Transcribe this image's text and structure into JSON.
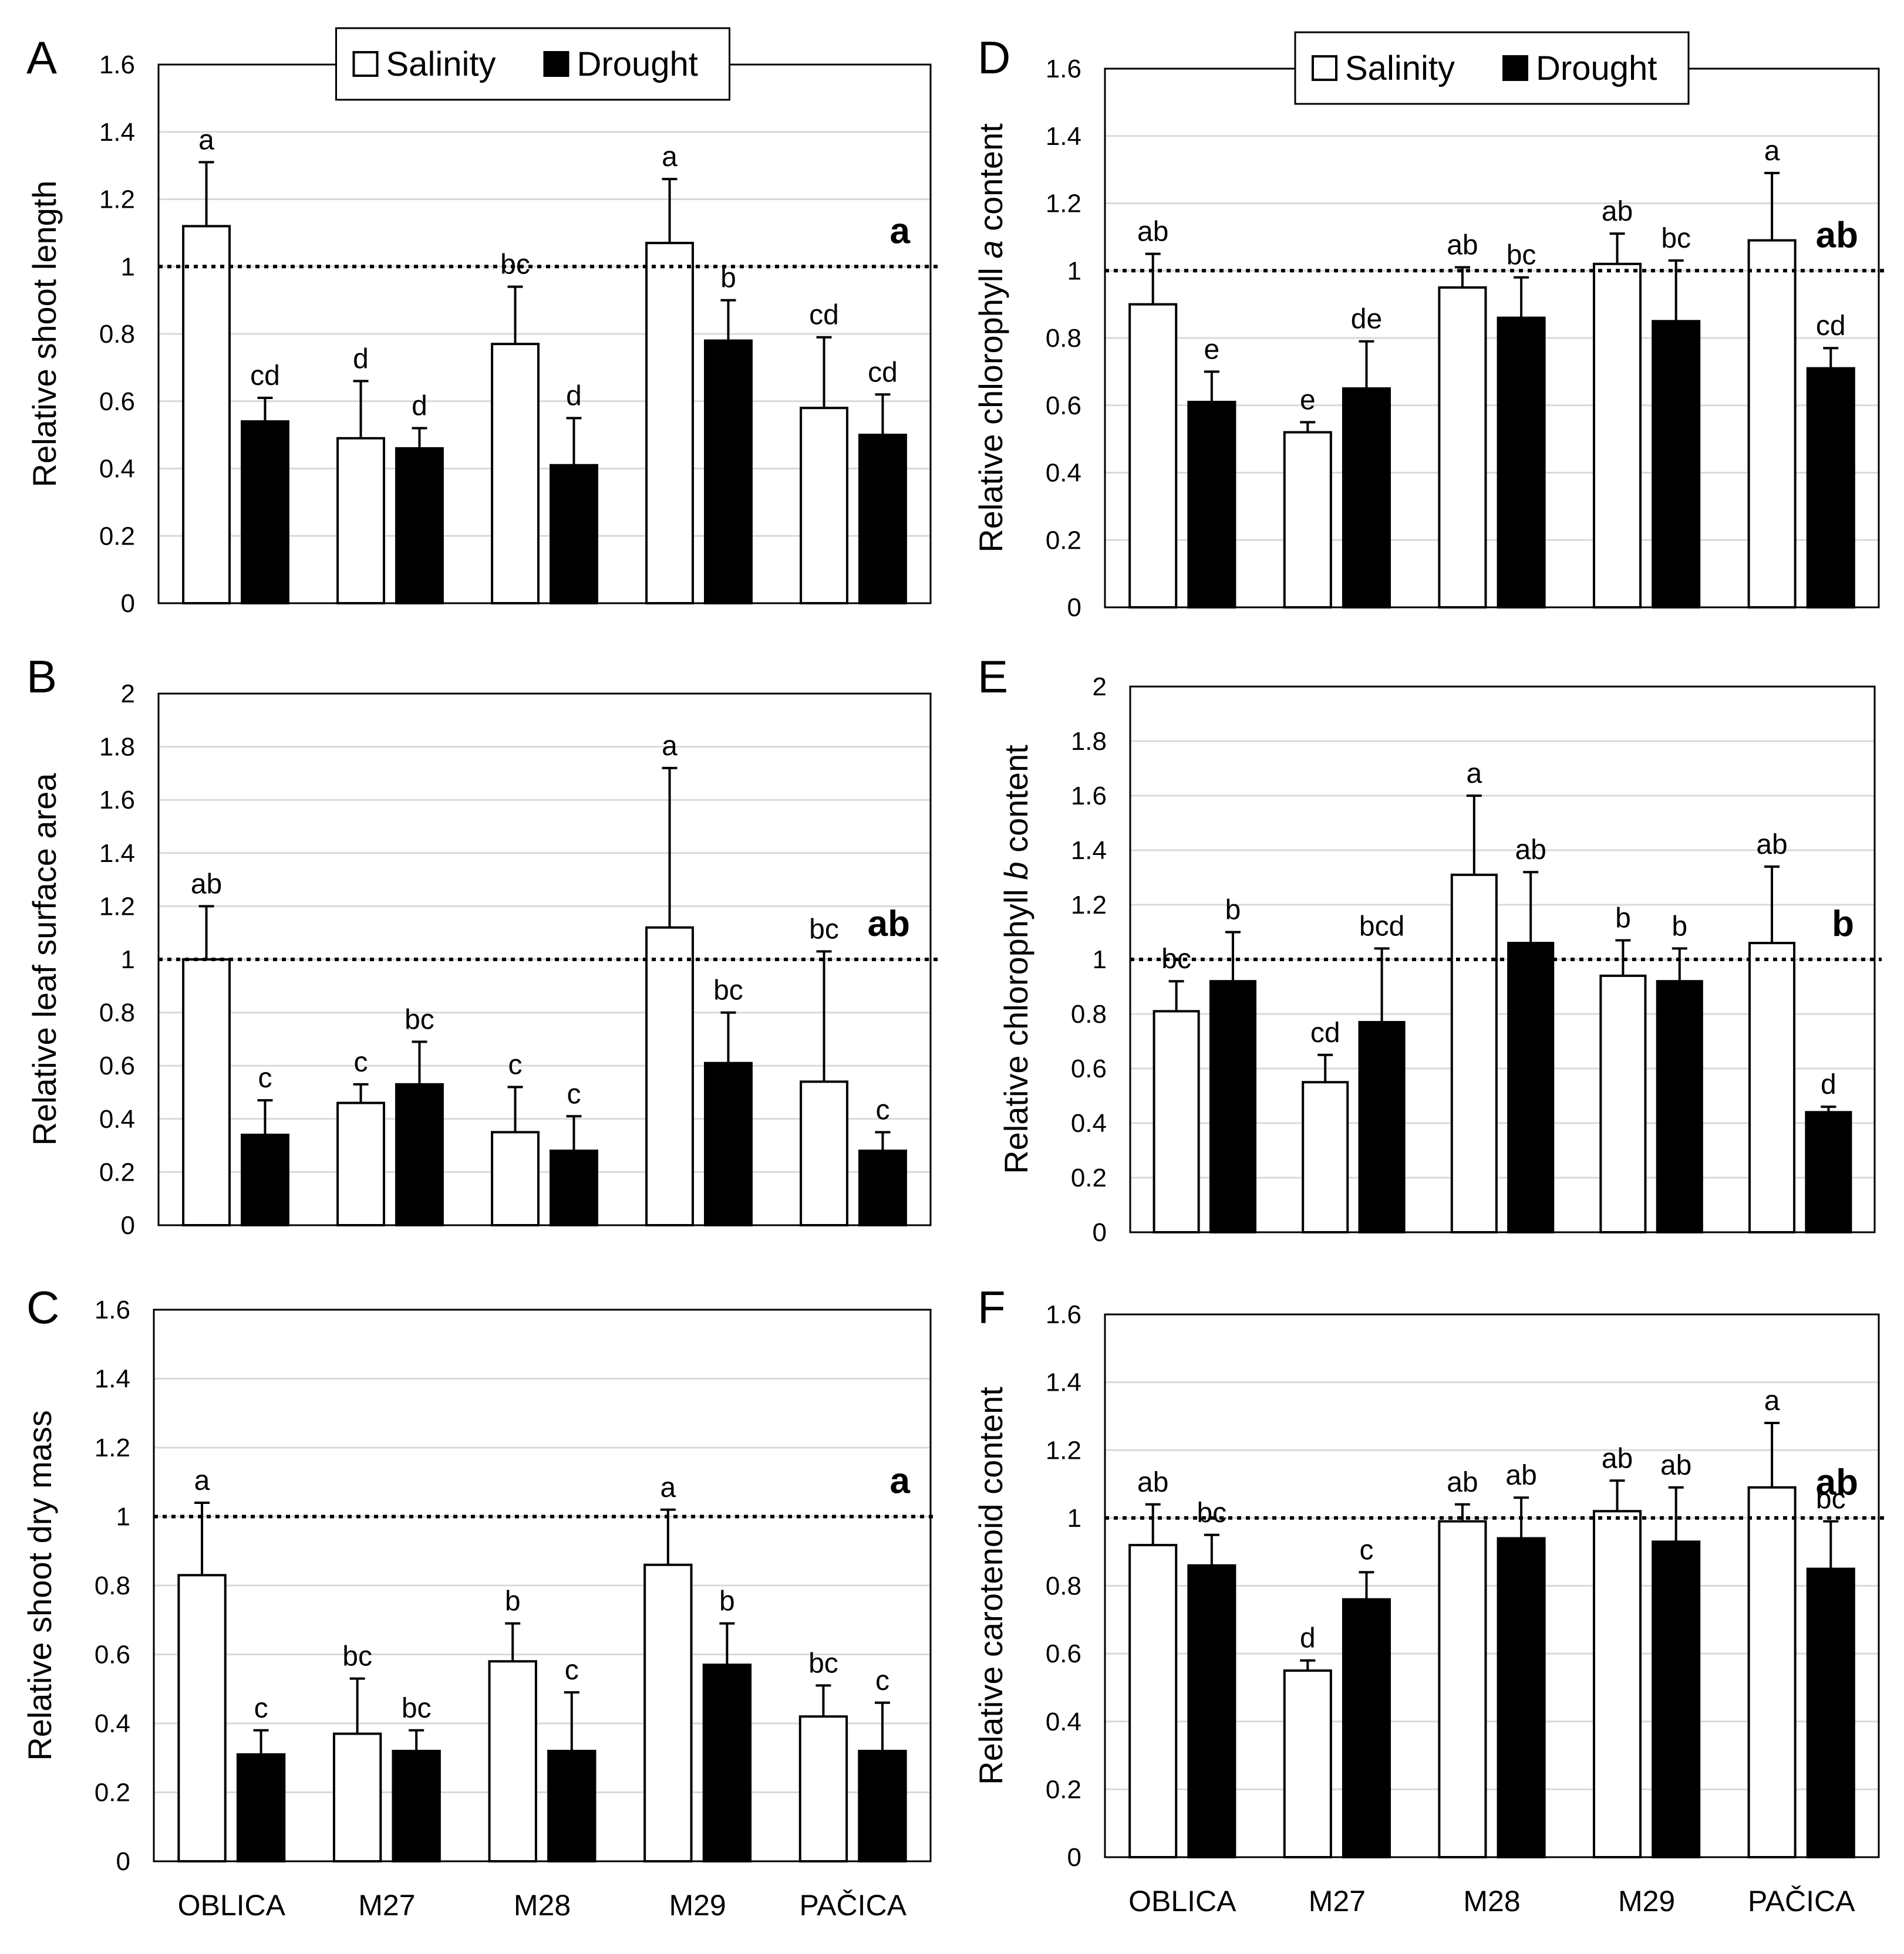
{
  "chart_data": [
    {
      "id": "A",
      "type": "bar",
      "panel_label": "A",
      "ylabel": "Relative shoot length",
      "ylabel_italic": "",
      "ylabel_suffix": "",
      "ylim": [
        0,
        1.6
      ],
      "yticks": [
        "0",
        "0.2",
        "0.4",
        "0.6",
        "0.8",
        "1",
        "1.2",
        "1.4",
        "1.6"
      ],
      "categories": [
        "OBLICA",
        "M27",
        "M28",
        "M29",
        "PAČICA"
      ],
      "show_xticklabels": false,
      "reference_line": 1,
      "group_letter": "a",
      "legend": {
        "show": true,
        "position": "top-center",
        "entries": [
          "Salinity",
          "Drought"
        ]
      },
      "series": [
        {
          "name": "Salinity",
          "values": [
            1.12,
            0.49,
            0.77,
            1.07,
            0.58
          ],
          "errors": [
            0.19,
            0.17,
            0.17,
            0.19,
            0.21
          ],
          "letters": [
            "a",
            "d",
            "bc",
            "a",
            "cd"
          ]
        },
        {
          "name": "Drought",
          "values": [
            0.54,
            0.46,
            0.41,
            0.78,
            0.5
          ],
          "errors": [
            0.07,
            0.06,
            0.14,
            0.12,
            0.12
          ],
          "letters": [
            "cd",
            "d",
            "d",
            "b",
            "cd"
          ]
        }
      ]
    },
    {
      "id": "B",
      "type": "bar",
      "panel_label": "B",
      "ylabel": "Relative leaf surface area",
      "ylabel_italic": "",
      "ylabel_suffix": "",
      "ylim": [
        0,
        2
      ],
      "yticks": [
        "0",
        "0.2",
        "0.4",
        "0.6",
        "0.8",
        "1",
        "1.2",
        "1.4",
        "1.6",
        "1.8",
        "2"
      ],
      "categories": [
        "OBLICA",
        "M27",
        "M28",
        "M29",
        "PAČICA"
      ],
      "show_xticklabels": false,
      "reference_line": 1,
      "group_letter": "ab",
      "legend": {
        "show": false,
        "position": "",
        "entries": []
      },
      "series": [
        {
          "name": "Salinity",
          "values": [
            1.0,
            0.46,
            0.35,
            1.12,
            0.54
          ],
          "errors": [
            0.2,
            0.07,
            0.17,
            0.6,
            0.49
          ],
          "letters": [
            "ab",
            "c",
            "c",
            "a",
            "bc"
          ]
        },
        {
          "name": "Drought",
          "values": [
            0.34,
            0.53,
            0.28,
            0.61,
            0.28
          ],
          "errors": [
            0.13,
            0.16,
            0.13,
            0.19,
            0.07
          ],
          "letters": [
            "c",
            "bc",
            "c",
            "bc",
            "c"
          ]
        }
      ]
    },
    {
      "id": "C",
      "type": "bar",
      "panel_label": "C",
      "ylabel": "Relative shoot dry mass",
      "ylabel_italic": "",
      "ylabel_suffix": "",
      "ylim": [
        0,
        1.6
      ],
      "yticks": [
        "0",
        "0.2",
        "0.4",
        "0.6",
        "0.8",
        "1",
        "1.2",
        "1.4",
        "1.6"
      ],
      "categories": [
        "OBLICA",
        "M27",
        "M28",
        "M29",
        "PAČICA"
      ],
      "show_xticklabels": true,
      "reference_line": 1,
      "group_letter": "a",
      "legend": {
        "show": false,
        "position": "",
        "entries": []
      },
      "series": [
        {
          "name": "Salinity",
          "values": [
            0.83,
            0.37,
            0.58,
            0.86,
            0.42
          ],
          "errors": [
            0.21,
            0.16,
            0.11,
            0.16,
            0.09
          ],
          "letters": [
            "a",
            "bc",
            "b",
            "a",
            "bc"
          ]
        },
        {
          "name": "Drought",
          "values": [
            0.31,
            0.32,
            0.32,
            0.57,
            0.32
          ],
          "errors": [
            0.07,
            0.06,
            0.17,
            0.12,
            0.14
          ],
          "letters": [
            "c",
            "bc",
            "c",
            "b",
            "c"
          ]
        }
      ]
    },
    {
      "id": "D",
      "type": "bar",
      "panel_label": "D",
      "ylabel": "Relative chlorophyll ",
      "ylabel_italic": "a",
      "ylabel_suffix": " content",
      "ylim": [
        0,
        1.6
      ],
      "yticks": [
        "0",
        "0.2",
        "0.4",
        "0.6",
        "0.8",
        "1",
        "1.2",
        "1.4",
        "1.6"
      ],
      "categories": [
        "OBLICA",
        "M27",
        "M28",
        "M29",
        "PAČICA"
      ],
      "show_xticklabels": false,
      "reference_line": 1,
      "group_letter": "ab",
      "legend": {
        "show": true,
        "position": "top-center",
        "entries": [
          "Salinity",
          "Drought"
        ]
      },
      "series": [
        {
          "name": "Salinity",
          "values": [
            0.9,
            0.52,
            0.95,
            1.02,
            1.09
          ],
          "errors": [
            0.15,
            0.03,
            0.06,
            0.09,
            0.2
          ],
          "letters": [
            "ab",
            "e",
            "ab",
            "ab",
            "a"
          ]
        },
        {
          "name": "Drought",
          "values": [
            0.61,
            0.65,
            0.86,
            0.85,
            0.71
          ],
          "errors": [
            0.09,
            0.14,
            0.12,
            0.18,
            0.06
          ],
          "letters": [
            "e",
            "de",
            "bc",
            "bc",
            "cd"
          ]
        }
      ]
    },
    {
      "id": "E",
      "type": "bar",
      "panel_label": "E",
      "ylabel": "Relative chlorophyll ",
      "ylabel_italic": "b",
      "ylabel_suffix": " content",
      "ylim": [
        0,
        2
      ],
      "yticks": [
        "0",
        "0.2",
        "0.4",
        "0.6",
        "0.8",
        "1",
        "1.2",
        "1.4",
        "1.6",
        "1.8",
        "2"
      ],
      "categories": [
        "OBLICA",
        "M27",
        "M28",
        "M29",
        "PAČICA"
      ],
      "show_xticklabels": false,
      "reference_line": 1,
      "group_letter": "b",
      "legend": {
        "show": false,
        "position": "",
        "entries": []
      },
      "series": [
        {
          "name": "Salinity",
          "values": [
            0.81,
            0.55,
            1.31,
            0.94,
            1.06
          ],
          "errors": [
            0.11,
            0.1,
            0.29,
            0.13,
            0.28
          ],
          "letters": [
            "bc",
            "cd",
            "a",
            "b",
            "ab"
          ]
        },
        {
          "name": "Drought",
          "values": [
            0.92,
            0.77,
            1.06,
            0.92,
            0.44
          ],
          "errors": [
            0.18,
            0.27,
            0.26,
            0.12,
            0.02
          ],
          "letters": [
            "b",
            "bcd",
            "ab",
            "b",
            "d"
          ]
        }
      ]
    },
    {
      "id": "F",
      "type": "bar",
      "panel_label": "F",
      "ylabel": "Relative carotenoid content",
      "ylabel_italic": "",
      "ylabel_suffix": "",
      "ylim": [
        0,
        1.6
      ],
      "yticks": [
        "0",
        "0.2",
        "0.4",
        "0.6",
        "0.8",
        "1",
        "1.2",
        "1.4",
        "1.6"
      ],
      "categories": [
        "OBLICA",
        "M27",
        "M28",
        "M29",
        "PAČICA"
      ],
      "show_xticklabels": true,
      "reference_line": 1,
      "group_letter": "ab",
      "legend": {
        "show": false,
        "position": "",
        "entries": []
      },
      "series": [
        {
          "name": "Salinity",
          "values": [
            0.92,
            0.55,
            0.99,
            1.02,
            1.09
          ],
          "errors": [
            0.12,
            0.03,
            0.05,
            0.09,
            0.19
          ],
          "letters": [
            "ab",
            "d",
            "ab",
            "ab",
            "a"
          ]
        },
        {
          "name": "Drought",
          "values": [
            0.86,
            0.76,
            0.94,
            0.93,
            0.85
          ],
          "errors": [
            0.09,
            0.08,
            0.12,
            0.16,
            0.14
          ],
          "letters": [
            "bc",
            "c",
            "ab",
            "ab",
            "bc"
          ]
        }
      ]
    }
  ]
}
